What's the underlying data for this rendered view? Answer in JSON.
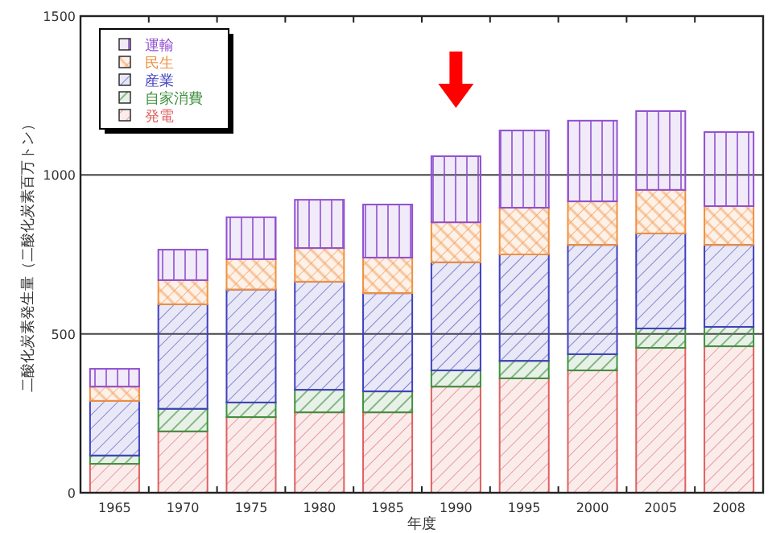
{
  "chart_data": {
    "type": "bar",
    "stacked": true,
    "xlabel": "年度",
    "ylabel": "二酸化炭素発生量（二酸化炭素百万トン）",
    "categories": [
      "1965",
      "1970",
      "1975",
      "1980",
      "1985",
      "1990",
      "1995",
      "2000",
      "2005",
      "2008"
    ],
    "series": [
      {
        "name": "発電",
        "color": "#e06060",
        "values": [
          91,
          193,
          238,
          253,
          253,
          334,
          360,
          385,
          456,
          461
        ]
      },
      {
        "name": "自家消費",
        "color": "#409040",
        "values": [
          26,
          71,
          46,
          71,
          66,
          51,
          55,
          51,
          61,
          61
        ]
      },
      {
        "name": "産業",
        "color": "#4040c0",
        "values": [
          172,
          329,
          355,
          340,
          309,
          340,
          335,
          344,
          299,
          258
        ]
      },
      {
        "name": "民生",
        "color": "#f09040",
        "values": [
          45,
          76,
          96,
          106,
          112,
          126,
          147,
          137,
          137,
          122
        ]
      },
      {
        "name": "運輸",
        "color": "#9050d0",
        "values": [
          56,
          96,
          132,
          152,
          167,
          208,
          243,
          254,
          248,
          233
        ]
      }
    ],
    "ylim": [
      0,
      1500
    ],
    "yticks": [
      0,
      500,
      1000,
      1500
    ],
    "grid": "y",
    "legend": "top left"
  }
}
